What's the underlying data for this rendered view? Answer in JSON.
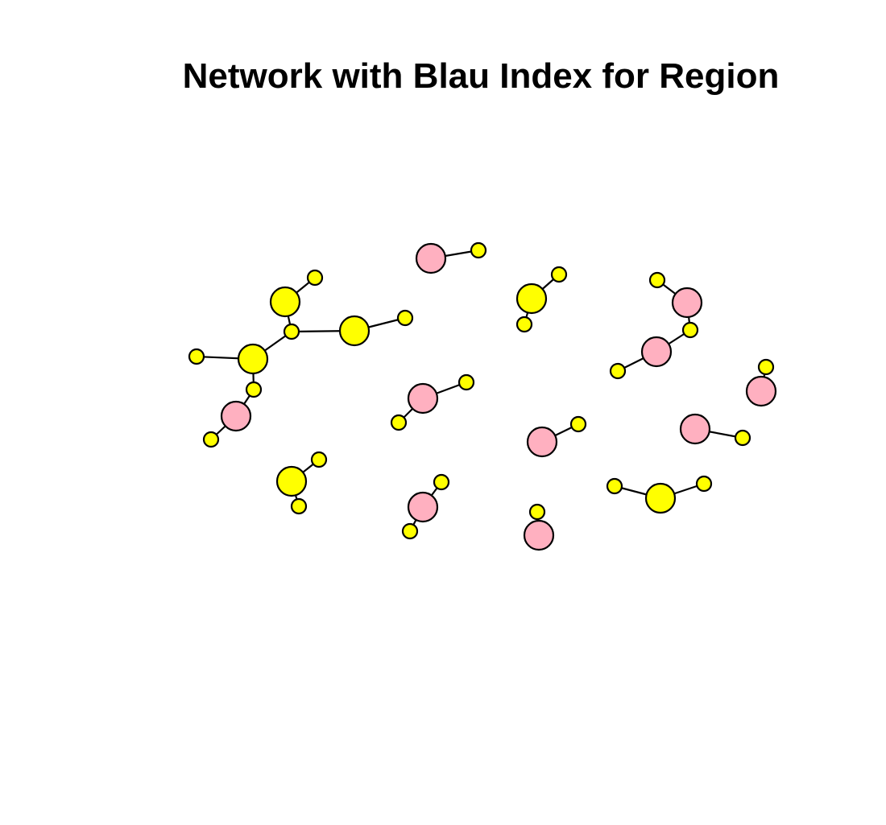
{
  "title": "Network with Blau Index for Region",
  "colors": {
    "yellow": "#ffff00",
    "pink": "#ffb0c0",
    "edge": "#000000",
    "outline": "#000000"
  },
  "nodes": [
    {
      "id": "n1",
      "color": "pink",
      "size": "large"
    },
    {
      "id": "n2",
      "color": "yellow",
      "size": "small"
    },
    {
      "id": "n3",
      "color": "yellow",
      "size": "large"
    },
    {
      "id": "n4",
      "color": "yellow",
      "size": "small"
    },
    {
      "id": "n5",
      "color": "yellow",
      "size": "small"
    },
    {
      "id": "n6",
      "color": "yellow",
      "size": "small"
    },
    {
      "id": "n7",
      "color": "pink",
      "size": "large"
    },
    {
      "id": "n8",
      "color": "yellow",
      "size": "small"
    },
    {
      "id": "n9",
      "color": "pink",
      "size": "large"
    },
    {
      "id": "n10",
      "color": "yellow",
      "size": "small"
    },
    {
      "id": "n11",
      "color": "yellow",
      "size": "small"
    },
    {
      "id": "n12",
      "color": "pink",
      "size": "large"
    },
    {
      "id": "n13",
      "color": "yellow",
      "size": "small"
    },
    {
      "id": "n14",
      "color": "yellow",
      "size": "large"
    },
    {
      "id": "n15",
      "color": "yellow",
      "size": "small"
    },
    {
      "id": "n16",
      "color": "yellow",
      "size": "small"
    },
    {
      "id": "n17",
      "color": "yellow",
      "size": "large"
    },
    {
      "id": "n18",
      "color": "yellow",
      "size": "small"
    },
    {
      "id": "n19",
      "color": "yellow",
      "size": "small"
    },
    {
      "id": "n20",
      "color": "yellow",
      "size": "large"
    },
    {
      "id": "n21",
      "color": "yellow",
      "size": "small"
    },
    {
      "id": "n22",
      "color": "yellow",
      "size": "large"
    },
    {
      "id": "n23",
      "color": "yellow",
      "size": "small"
    },
    {
      "id": "n24",
      "color": "pink",
      "size": "large"
    },
    {
      "id": "n25",
      "color": "yellow",
      "size": "small"
    },
    {
      "id": "n26",
      "color": "pink",
      "size": "large"
    },
    {
      "id": "n27",
      "color": "yellow",
      "size": "small"
    },
    {
      "id": "n28",
      "color": "yellow",
      "size": "small"
    },
    {
      "id": "n29",
      "color": "pink",
      "size": "large"
    },
    {
      "id": "n30",
      "color": "yellow",
      "size": "small"
    },
    {
      "id": "n31",
      "color": "yellow",
      "size": "small"
    },
    {
      "id": "n32",
      "color": "pink",
      "size": "large"
    },
    {
      "id": "n33",
      "color": "yellow",
      "size": "small"
    },
    {
      "id": "n34",
      "color": "pink",
      "size": "large"
    },
    {
      "id": "n35",
      "color": "yellow",
      "size": "small"
    },
    {
      "id": "n36",
      "color": "yellow",
      "size": "small"
    },
    {
      "id": "n37",
      "color": "yellow",
      "size": "large"
    },
    {
      "id": "n38",
      "color": "yellow",
      "size": "small"
    },
    {
      "id": "n39",
      "color": "yellow",
      "size": "small"
    },
    {
      "id": "n40",
      "color": "pink",
      "size": "large"
    },
    {
      "id": "n41",
      "color": "yellow",
      "size": "small"
    },
    {
      "id": "n42",
      "color": "pink",
      "size": "large"
    },
    {
      "id": "n43",
      "color": "yellow",
      "size": "small"
    }
  ],
  "edges": [
    [
      "n1",
      "n2"
    ],
    [
      "n3",
      "n4"
    ],
    [
      "n3",
      "n5"
    ],
    [
      "n6",
      "n7"
    ],
    [
      "n7",
      "n8"
    ],
    [
      "n8",
      "n9"
    ],
    [
      "n9",
      "n10"
    ],
    [
      "n11",
      "n12"
    ],
    [
      "n13",
      "n14"
    ],
    [
      "n14",
      "n15"
    ],
    [
      "n16",
      "n17"
    ],
    [
      "n17",
      "n18"
    ],
    [
      "n17",
      "n19"
    ],
    [
      "n18",
      "n20"
    ],
    [
      "n18",
      "n22"
    ],
    [
      "n20",
      "n21"
    ],
    [
      "n22",
      "n23"
    ],
    [
      "n19",
      "n24"
    ],
    [
      "n24",
      "n25"
    ],
    [
      "n26",
      "n27"
    ],
    [
      "n26",
      "n28"
    ],
    [
      "n29",
      "n30"
    ],
    [
      "n31",
      "n32"
    ],
    [
      "n33",
      "n34"
    ],
    [
      "n34",
      "n35"
    ],
    [
      "n36",
      "n37"
    ],
    [
      "n37",
      "n38"
    ],
    [
      "n39",
      "n40"
    ],
    [
      "n41",
      "n42"
    ],
    [
      "n42",
      "n43"
    ]
  ]
}
